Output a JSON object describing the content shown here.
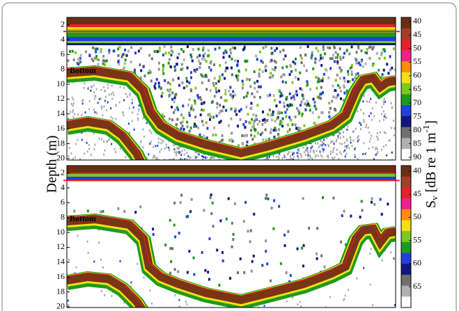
{
  "figure": {
    "ylabel": "Depth (m)",
    "cbar_label_parts": [
      "S",
      "v",
      " [dB re 1 m",
      "-1",
      "]"
    ]
  },
  "chart_data": [
    {
      "type": "heatmap",
      "annotation": "Bottom",
      "ylim": [
        1,
        20.2
      ],
      "yticks": [
        2,
        4,
        6,
        8,
        10,
        12,
        14,
        16,
        18,
        20
      ],
      "reference_depth": 2.9,
      "colorbar": {
        "clim": [
          38.5,
          91
        ],
        "ticks": [
          40,
          45,
          50,
          55,
          60,
          65,
          70,
          75,
          80,
          85,
          90
        ],
        "colors": [
          "#6b2e12",
          "#a0402a",
          "#e8202a",
          "#f02090",
          "#ff8c00",
          "#f5e010",
          "#7cc820",
          "#1e9a1e",
          "#2040e0",
          "#101880",
          "#707070",
          "#b0b0b0",
          "#ffffff"
        ]
      }
    },
    {
      "type": "heatmap",
      "annotation": "Bottom",
      "ylim": [
        1,
        20.1
      ],
      "yticks": [
        2,
        4,
        6,
        8,
        10,
        12,
        14,
        16,
        18,
        20
      ],
      "reference_depth": 3,
      "colorbar": {
        "clim": [
          38.8,
          69.5
        ],
        "ticks": [
          40,
          45,
          50,
          55,
          60,
          65
        ],
        "colors": [
          "#6b2e12",
          "#a0402a",
          "#e8202a",
          "#f02090",
          "#ff8c00",
          "#f5e010",
          "#7cc820",
          "#1e9a1e",
          "#2040e0",
          "#101880",
          "#707070",
          "#b0b0b0",
          "#ffffff"
        ]
      }
    }
  ]
}
